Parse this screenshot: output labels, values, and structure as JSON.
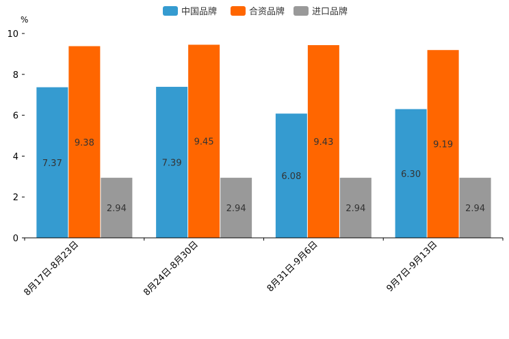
{
  "chart_data": {
    "type": "bar",
    "title": "",
    "xlabel": "",
    "ylabel": "%",
    "ylim": [
      0,
      10
    ],
    "yticks": [
      "0",
      "2",
      "4",
      "6",
      "8",
      "10"
    ],
    "legend_position": "top-center",
    "categories": [
      "8月17日-8月23日",
      "8月24日-8月30日",
      "8月31日-9月6日",
      "9月7日-9月13日"
    ],
    "series": [
      {
        "name": "中国品牌",
        "color": "#359bd0",
        "values": [
          7.37,
          7.39,
          6.08,
          6.3
        ],
        "labels": [
          "7.37",
          "7.39",
          "6.08",
          "6.30"
        ]
      },
      {
        "name": "合资品牌",
        "color": "#ff6600",
        "values": [
          9.38,
          9.45,
          9.43,
          9.19
        ],
        "labels": [
          "9.38",
          "9.45",
          "9.43",
          "9.19"
        ]
      },
      {
        "name": "进口品牌",
        "color": "#999999",
        "values": [
          2.94,
          2.94,
          2.94,
          2.94
        ],
        "labels": [
          "2.94",
          "2.94",
          "2.94",
          "2.94"
        ]
      }
    ]
  }
}
